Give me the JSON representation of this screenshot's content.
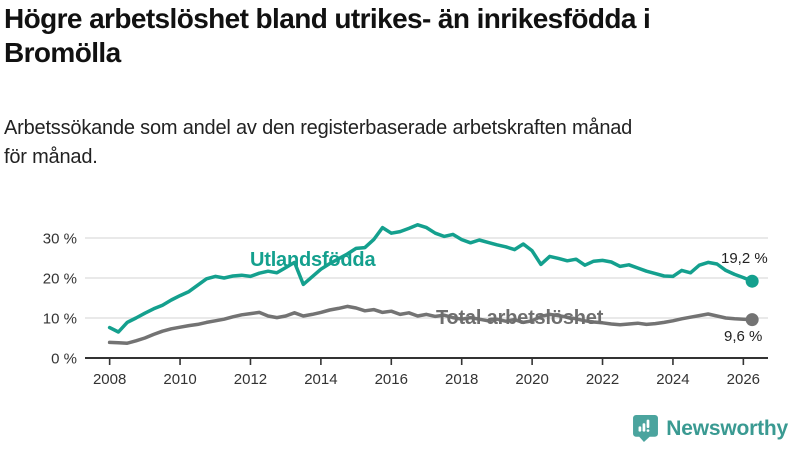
{
  "header": {
    "title_lines": [
      "Högre arbetslöshet bland utrikes- än inrikesfödda i",
      "Bromölla"
    ],
    "subtitle_lines": [
      "Arbetssökande som andel av den registerbaserade arbetskraften månad",
      "för månad."
    ]
  },
  "chart_data": {
    "type": "line",
    "title": "Högre arbetslöshet bland utrikes- än inrikesfödda i Bromölla",
    "subtitle": "Arbetssökande som andel av den registerbaserade arbetskraften månad för månad.",
    "grid": true,
    "legend_position": "inline-labels-on-lines",
    "x_axis": {
      "min": 2007.3,
      "max": 2026.7,
      "ticks": [
        2008,
        2010,
        2012,
        2014,
        2016,
        2018,
        2020,
        2022,
        2024,
        2026
      ]
    },
    "y_axis": {
      "min": 0,
      "max": 35,
      "ticks": [
        0,
        10,
        20,
        30
      ],
      "unit_suffix": " %"
    },
    "series": [
      {
        "name": "Utlandsfödda",
        "color": "#14a08e",
        "end_label": "19,2 %",
        "end_value": 19.2,
        "x_start": 2008.0,
        "x_step": 0.25,
        "values": [
          7.6,
          6.5,
          8.9,
          10.0,
          11.2,
          12.3,
          13.2,
          14.5,
          15.6,
          16.6,
          18.2,
          19.8,
          20.4,
          20.0,
          20.5,
          20.7,
          20.4,
          21.2,
          21.7,
          21.3,
          22.6,
          23.9,
          18.4,
          20.3,
          22.2,
          23.6,
          24.8,
          26.0,
          27.4,
          27.6,
          29.6,
          32.6,
          31.2,
          31.6,
          32.4,
          33.3,
          32.6,
          31.2,
          30.4,
          30.9,
          29.6,
          28.8,
          29.5,
          28.9,
          28.3,
          27.8,
          27.1,
          28.5,
          26.8,
          23.4,
          25.4,
          24.9,
          24.3,
          24.7,
          23.2,
          24.2,
          24.4,
          24.0,
          22.9,
          23.3,
          22.5,
          21.7,
          21.1,
          20.5,
          20.4,
          21.9,
          21.3,
          23.2,
          23.9,
          23.5,
          21.9,
          20.9,
          20.1,
          19.2
        ]
      },
      {
        "name": "Total arbetslöshet",
        "color": "#737373",
        "end_label": "9,6 %",
        "end_value": 9.6,
        "x_start": 2008.0,
        "x_step": 0.25,
        "values": [
          3.9,
          3.8,
          3.7,
          4.3,
          5.0,
          5.9,
          6.7,
          7.3,
          7.7,
          8.1,
          8.4,
          8.9,
          9.3,
          9.7,
          10.3,
          10.8,
          11.1,
          11.4,
          10.5,
          10.1,
          10.5,
          11.3,
          10.5,
          10.9,
          11.4,
          12.0,
          12.4,
          12.9,
          12.5,
          11.8,
          12.1,
          11.4,
          11.7,
          10.9,
          11.3,
          10.5,
          10.9,
          10.4,
          10.7,
          10.1,
          9.7,
          10.1,
          9.7,
          9.3,
          9.7,
          9.2,
          9.6,
          8.9,
          9.3,
          10.4,
          10.9,
          10.6,
          10.2,
          9.8,
          9.3,
          9.0,
          8.8,
          8.5,
          8.3,
          8.5,
          8.7,
          8.4,
          8.6,
          8.9,
          9.3,
          9.8,
          10.2,
          10.6,
          11.0,
          10.5,
          10.0,
          9.8,
          9.7,
          9.6
        ]
      }
    ]
  },
  "branding": {
    "logo_text": "Newsworthy",
    "logo_icon": "bar-chart-speech-bubble-icon",
    "icon_color": "#4ba49e",
    "text_color": "#3a9a92"
  }
}
